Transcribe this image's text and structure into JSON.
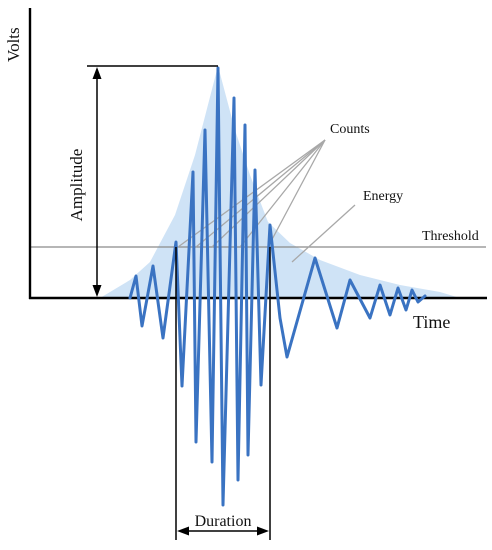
{
  "labels": {
    "volts": "Volts",
    "time": "Time",
    "amplitude": "Amplitude",
    "counts": "Counts",
    "energy": "Energy",
    "threshold": "Threshold",
    "duration": "Duration"
  },
  "colors": {
    "envelope_fill": "#cfe3f6",
    "signal": "#3a73c2",
    "axis": "#000000",
    "threshold_line": "#8a8a8a",
    "pointer_lines": "#a8a8a8"
  }
}
